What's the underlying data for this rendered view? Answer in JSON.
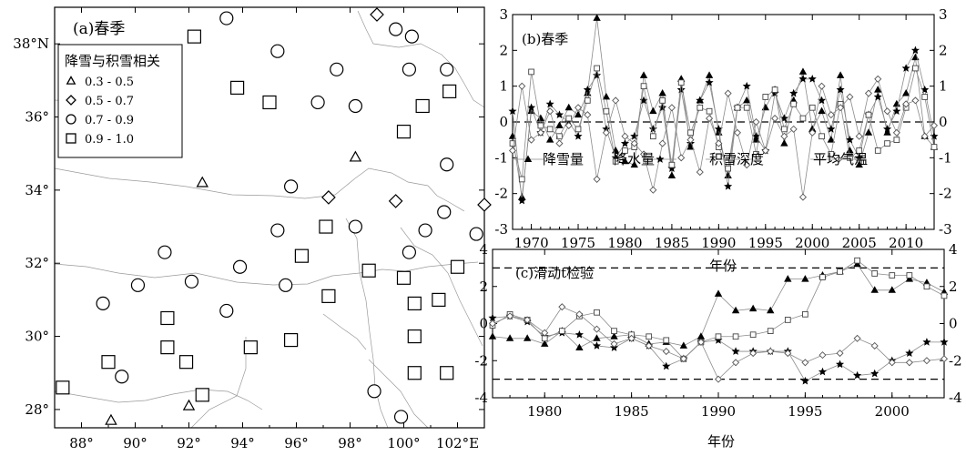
{
  "panel_a": {
    "label": "(a)春季",
    "legend_title": "降雪与积雪相关",
    "legend": [
      {
        "marker": "triangle",
        "range": "0.3 - 0.5"
      },
      {
        "marker": "diamond",
        "range": "0.5 - 0.7"
      },
      {
        "marker": "circle",
        "range": "0.7 - 0.9"
      },
      {
        "marker": "square",
        "range": "0.9 - 1.0"
      }
    ],
    "x_tick_labels": [
      "88°",
      "90°",
      "92°",
      "94°",
      "96°",
      "98°",
      "100°",
      "102°E"
    ],
    "y_tick_labels": [
      "28°",
      "30°",
      "32°",
      "34°",
      "36°",
      "38°N"
    ]
  },
  "panel_b": {
    "label": "(b)春季",
    "xlabel": "年份",
    "series_labels": [
      "降雪量",
      "降水量",
      "积雪深度",
      "平均气温"
    ],
    "x_tick_labels": [
      "1970",
      "1975",
      "1980",
      "1985",
      "1990",
      "1995",
      "2000",
      "2005",
      "2010"
    ],
    "y_tick_labels_left": [
      "-3",
      "-2",
      "-1",
      "0",
      "1",
      "2",
      "3"
    ],
    "y_tick_labels_right": [
      "-3",
      "-2",
      "-1",
      "0",
      "1",
      "2",
      "3"
    ]
  },
  "panel_c": {
    "label": "(c)滑动t检验",
    "xlabel": "年份",
    "x_tick_labels": [
      "1980",
      "1985",
      "1990",
      "1995",
      "2000"
    ],
    "y_tick_labels_left": [
      "-4",
      "-2",
      "0",
      "2",
      "4"
    ],
    "y_tick_labels_right": [
      "-4",
      "-2",
      "0",
      "2",
      "4"
    ]
  },
  "chart_data": [
    {
      "type": "scatter",
      "panel": "a",
      "title": "(a)春季",
      "xlim": [
        87,
        103
      ],
      "ylim": [
        27.5,
        39
      ],
      "series": [
        {
          "name": "0.3 - 0.5",
          "marker": "triangle",
          "points": [
            [
              92.5,
              34.2
            ],
            [
              98.2,
              34.9
            ],
            [
              89.1,
              27.7
            ],
            [
              92.0,
              28.1
            ]
          ]
        },
        {
          "name": "0.5 - 0.7",
          "marker": "diamond",
          "points": [
            [
              99.0,
              38.8
            ],
            [
              97.2,
              33.8
            ],
            [
              99.7,
              33.7
            ],
            [
              103.0,
              33.6
            ]
          ]
        },
        {
          "name": "0.7 - 0.9",
          "marker": "circle",
          "points": [
            [
              93.4,
              38.7
            ],
            [
              99.7,
              38.4
            ],
            [
              100.3,
              38.2
            ],
            [
              95.3,
              37.8
            ],
            [
              97.5,
              37.3
            ],
            [
              100.2,
              37.3
            ],
            [
              101.6,
              37.3
            ],
            [
              96.8,
              36.4
            ],
            [
              98.2,
              36.3
            ],
            [
              101.6,
              34.7
            ],
            [
              95.8,
              34.1
            ],
            [
              95.3,
              32.9
            ],
            [
              98.2,
              33.0
            ],
            [
              100.8,
              32.9
            ],
            [
              101.5,
              33.4
            ],
            [
              102.7,
              32.8
            ],
            [
              91.1,
              32.3
            ],
            [
              100.2,
              32.3
            ],
            [
              93.9,
              31.9
            ],
            [
              92.1,
              31.5
            ],
            [
              95.6,
              31.4
            ],
            [
              90.1,
              31.4
            ],
            [
              88.8,
              30.9
            ],
            [
              93.4,
              30.7
            ],
            [
              89.5,
              28.9
            ],
            [
              98.9,
              28.5
            ],
            [
              99.9,
              27.8
            ]
          ]
        },
        {
          "name": "0.9 - 1.0",
          "marker": "square",
          "points": [
            [
              92.2,
              38.2
            ],
            [
              93.8,
              36.8
            ],
            [
              95.0,
              36.4
            ],
            [
              100.7,
              36.3
            ],
            [
              101.7,
              36.7
            ],
            [
              100.0,
              35.6
            ],
            [
              97.1,
              33.0
            ],
            [
              96.2,
              32.2
            ],
            [
              98.7,
              31.8
            ],
            [
              100.0,
              31.6
            ],
            [
              102.0,
              31.9
            ],
            [
              97.2,
              31.1
            ],
            [
              100.4,
              30.9
            ],
            [
              101.3,
              31.0
            ],
            [
              91.2,
              30.5
            ],
            [
              100.4,
              30.0
            ],
            [
              91.2,
              29.7
            ],
            [
              94.3,
              29.7
            ],
            [
              95.8,
              29.9
            ],
            [
              89.0,
              29.3
            ],
            [
              91.9,
              29.3
            ],
            [
              100.4,
              29.0
            ],
            [
              101.6,
              29.0
            ],
            [
              92.5,
              28.4
            ],
            [
              87.3,
              28.6
            ]
          ]
        }
      ]
    },
    {
      "type": "line",
      "panel": "b",
      "title": "(b)春季",
      "xlabel": "年份",
      "ylabel": "",
      "xlim": [
        1968,
        2013
      ],
      "ylim": [
        -3,
        3
      ],
      "x": [
        1968,
        1969,
        1970,
        1971,
        1972,
        1973,
        1974,
        1975,
        1976,
        1977,
        1978,
        1979,
        1980,
        1981,
        1982,
        1983,
        1984,
        1985,
        1986,
        1987,
        1988,
        1989,
        1990,
        1991,
        1992,
        1993,
        1994,
        1995,
        1996,
        1997,
        1998,
        1999,
        2000,
        2001,
        2002,
        2003,
        2004,
        2005,
        2006,
        2007,
        2008,
        2009,
        2010,
        2011,
        2012,
        2013
      ],
      "series": [
        {
          "name": "降雪量",
          "marker": "triangle",
          "values": [
            -0.4,
            -2.1,
            0.3,
            0.1,
            -0.5,
            -0.1,
            0.4,
            0.2,
            0.8,
            2.9,
            0.7,
            -0.8,
            -1.1,
            -1.2,
            1.3,
            0.3,
            0.8,
            -1.5,
            1.2,
            -0.7,
            0.6,
            1.3,
            -0.3,
            -1.5,
            0.4,
            0.6,
            -0.5,
            0.4,
            0.9,
            -0.6,
            0.6,
            1.4,
            -0.2,
            0.3,
            -0.5,
            1.3,
            -0.8,
            -1.2,
            -0.3,
            0.9,
            -0.3,
            0.5,
            0.8,
            1.8,
            -0.4,
            -0.7
          ]
        },
        {
          "name": "降水量",
          "marker": "star",
          "values": [
            0.3,
            -2.2,
            0.4,
            -0.3,
            0.5,
            0.2,
            0.0,
            -0.4,
            0.9,
            1.3,
            -0.2,
            -1.0,
            -0.6,
            -0.4,
            0.6,
            -0.2,
            0.4,
            -1.3,
            0.9,
            -0.6,
            0.6,
            1.1,
            -0.2,
            -1.8,
            0.4,
            1.0,
            -0.4,
            -0.8,
            0.8,
            0.1,
            0.8,
            1.2,
            1.2,
            0.6,
            -0.2,
            0.9,
            -0.5,
            -1.0,
            0.2,
            0.7,
            -0.2,
            0.3,
            1.5,
            2.0,
            0.9,
            -0.4
          ]
        },
        {
          "name": "积雪深度",
          "marker": "square",
          "values": [
            -0.6,
            -1.6,
            1.4,
            -0.1,
            -0.2,
            -0.4,
            0.1,
            -0.2,
            0.6,
            1.5,
            0.3,
            -1.1,
            -0.8,
            -0.7,
            1.0,
            -0.4,
            0.6,
            -1.2,
            1.1,
            -0.3,
            0.4,
            0.3,
            -0.7,
            -1.3,
            0.4,
            0.4,
            -0.9,
            0.7,
            0.9,
            -0.2,
            0.5,
            0.1,
            0.4,
            -0.4,
            -0.9,
            0.5,
            -1.0,
            -0.8,
            0.2,
            -0.8,
            -0.6,
            -0.5,
            0.4,
            1.5,
            0.7,
            -0.7
          ]
        },
        {
          "name": "平均气温",
          "marker": "diamond",
          "values": [
            -0.8,
            1.0,
            -0.5,
            -0.3,
            0.3,
            -0.6,
            -0.1,
            0.4,
            0.2,
            -1.6,
            -0.3,
            0.6,
            -0.4,
            -0.6,
            -0.9,
            -1.9,
            -0.6,
            0.4,
            -1.0,
            -0.5,
            -1.4,
            0.1,
            -0.6,
            0.8,
            -0.3,
            -1.2,
            0.0,
            -0.8,
            0.1,
            -0.4,
            -0.2,
            -2.1,
            -0.3,
            1.0,
            0.2,
            0.4,
            0.7,
            -0.4,
            0.8,
            1.2,
            0.3,
            -0.3,
            0.5,
            0.6,
            -0.4,
            -0.1
          ]
        }
      ]
    },
    {
      "type": "line",
      "panel": "c",
      "title": "(c)滑动t检验",
      "xlabel": "年份",
      "ylabel": "",
      "xlim": [
        1977,
        2003
      ],
      "ylim": [
        -4,
        4
      ],
      "x": [
        1977,
        1978,
        1979,
        1980,
        1981,
        1982,
        1983,
        1984,
        1985,
        1986,
        1987,
        1988,
        1989,
        1990,
        1991,
        1992,
        1993,
        1994,
        1995,
        1996,
        1997,
        1998,
        1999,
        2000,
        2001,
        2002,
        2003
      ],
      "reference_lines": [
        3,
        -3
      ],
      "series": [
        {
          "name": "降雪量",
          "marker": "triangle",
          "values": [
            -0.7,
            -0.8,
            -0.8,
            -1.1,
            -0.4,
            -1.3,
            -0.8,
            -0.7,
            -0.6,
            -1.1,
            -1.0,
            -1.2,
            -0.7,
            1.6,
            0.7,
            0.8,
            0.7,
            2.4,
            2.4,
            2.6,
            2.8,
            3.2,
            1.8,
            1.8,
            2.4,
            2.2,
            1.7
          ]
        },
        {
          "name": "降水量",
          "marker": "star",
          "values": [
            0.3,
            0.4,
            0.1,
            -0.7,
            -0.5,
            -0.6,
            -1.2,
            -1.3,
            -0.8,
            -1.2,
            -2.3,
            -1.9,
            -1.0,
            -0.9,
            -1.5,
            -1.5,
            -1.5,
            -1.5,
            -3.1,
            -2.6,
            -2.2,
            -2.8,
            -2.7,
            -2.0,
            -1.6,
            -1.0,
            -1.0
          ]
        },
        {
          "name": "积雪深度",
          "marker": "square",
          "values": [
            -0.1,
            0.5,
            0.2,
            -0.8,
            -0.4,
            0.4,
            0.6,
            -0.4,
            -0.6,
            -0.7,
            -0.9,
            -1.9,
            -1.0,
            -0.7,
            -0.7,
            -0.6,
            -0.4,
            0.2,
            0.5,
            2.5,
            2.8,
            3.4,
            2.7,
            2.6,
            2.6,
            2.0,
            1.5
          ]
        },
        {
          "name": "平均气温",
          "marker": "diamond",
          "values": [
            0.0,
            0.4,
            0.2,
            -0.5,
            0.9,
            0.5,
            -0.3,
            -1.1,
            -0.8,
            -1.2,
            -1.5,
            -1.9,
            -1.0,
            -3.0,
            -2.1,
            -1.6,
            -1.5,
            -1.6,
            -2.1,
            -1.7,
            -1.6,
            -0.8,
            -1.2,
            -2.1,
            -2.1,
            -2.0,
            -1.9
          ]
        }
      ]
    }
  ]
}
